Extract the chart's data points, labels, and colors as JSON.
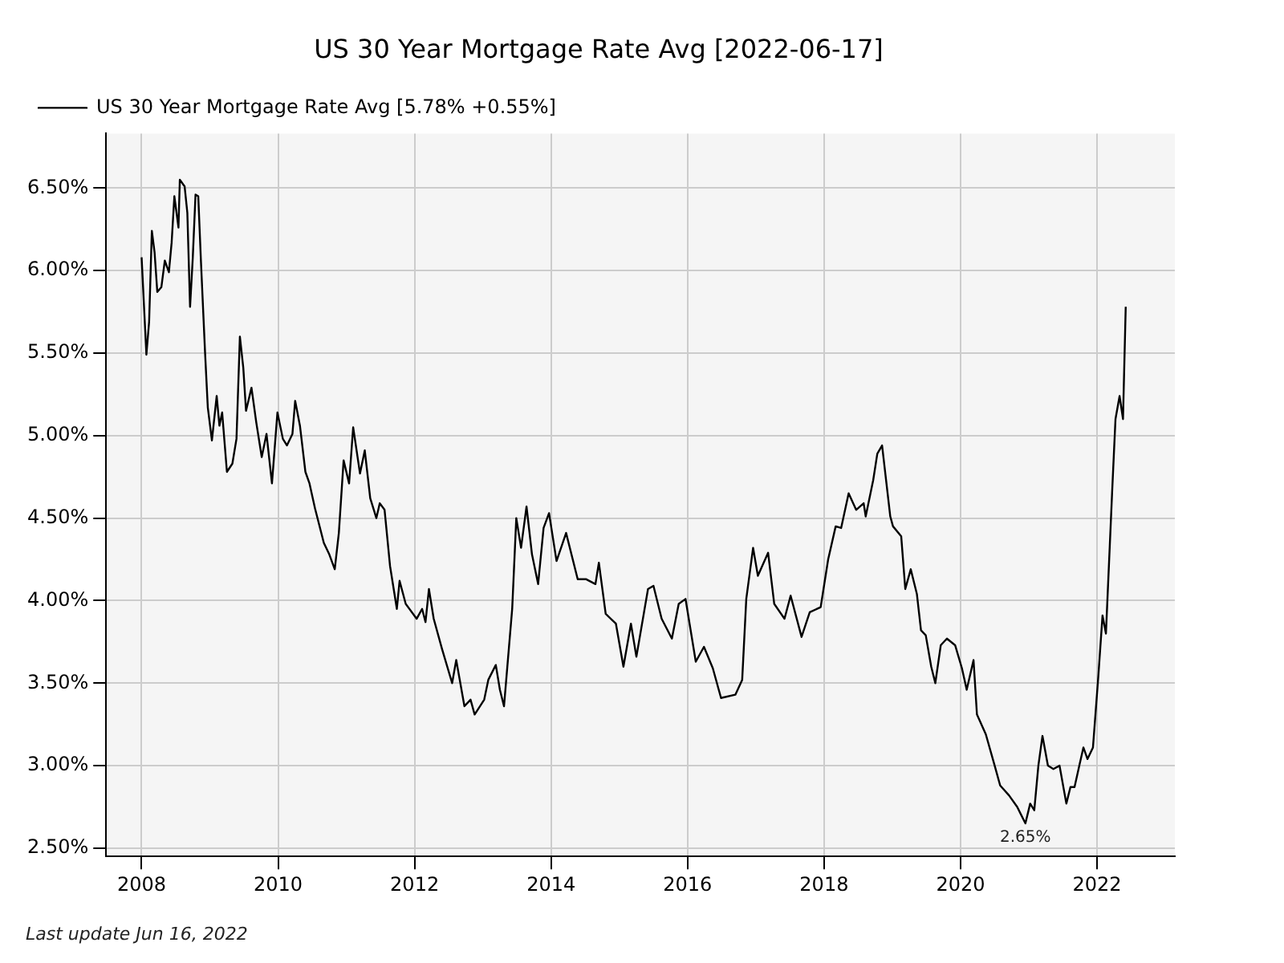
{
  "chart_data": {
    "type": "line",
    "title": "US 30 Year Mortgage Rate Avg [2022-06-17]",
    "x": [
      2008.0,
      2008.07,
      2008.11,
      2008.15,
      2008.19,
      2008.23,
      2008.29,
      2008.34,
      2008.4,
      2008.44,
      2008.48,
      2008.54,
      2008.56,
      2008.63,
      2008.67,
      2008.71,
      2008.75,
      2008.79,
      2008.83,
      2008.87,
      2008.93,
      2008.97,
      2009.03,
      2009.1,
      2009.14,
      2009.18,
      2009.25,
      2009.33,
      2009.39,
      2009.44,
      2009.49,
      2009.53,
      2009.61,
      2009.68,
      2009.76,
      2009.83,
      2009.91,
      2009.99,
      2010.07,
      2010.13,
      2010.21,
      2010.25,
      2010.32,
      2010.4,
      2010.46,
      2010.54,
      2010.67,
      2010.75,
      2010.83,
      2010.89,
      2010.96,
      2011.04,
      2011.1,
      2011.2,
      2011.27,
      2011.35,
      2011.44,
      2011.49,
      2011.56,
      2011.64,
      2011.74,
      2011.78,
      2011.87,
      2012.03,
      2012.11,
      2012.16,
      2012.21,
      2012.28,
      2012.4,
      2012.55,
      2012.61,
      2012.73,
      2012.82,
      2012.88,
      2013.02,
      2013.08,
      2013.19,
      2013.25,
      2013.31,
      2013.43,
      2013.49,
      2013.56,
      2013.64,
      2013.72,
      2013.81,
      2013.89,
      2013.97,
      2014.08,
      2014.22,
      2014.39,
      2014.51,
      2014.65,
      2014.7,
      2014.8,
      2014.95,
      2015.06,
      2015.17,
      2015.25,
      2015.42,
      2015.5,
      2015.62,
      2015.77,
      2015.87,
      2015.97,
      2016.12,
      2016.24,
      2016.37,
      2016.49,
      2016.7,
      2016.8,
      2016.86,
      2016.96,
      2017.03,
      2017.18,
      2017.27,
      2017.42,
      2017.51,
      2017.67,
      2017.79,
      2017.95,
      2018.06,
      2018.17,
      2018.25,
      2018.36,
      2018.47,
      2018.58,
      2018.61,
      2018.72,
      2018.78,
      2018.85,
      2018.97,
      2019.01,
      2019.13,
      2019.19,
      2019.27,
      2019.36,
      2019.42,
      2019.49,
      2019.57,
      2019.63,
      2019.71,
      2019.8,
      2019.92,
      2020.02,
      2020.09,
      2020.19,
      2020.24,
      2020.37,
      2020.5,
      2020.58,
      2020.71,
      2020.83,
      2020.95,
      2021.02,
      2021.08,
      2021.14,
      2021.2,
      2021.28,
      2021.36,
      2021.45,
      2021.55,
      2021.61,
      2021.67,
      2021.74,
      2021.8,
      2021.86,
      2021.94,
      2022.02,
      2022.08,
      2022.13,
      2022.22,
      2022.27,
      2022.33,
      2022.38,
      2022.42
    ],
    "series": [
      {
        "name": "US 30 Year Mortgage Rate Avg [5.78% +0.55%]",
        "color": "#000000",
        "values": [
          6.08,
          5.49,
          5.69,
          6.24,
          6.11,
          5.87,
          5.9,
          6.06,
          5.99,
          6.17,
          6.45,
          6.26,
          6.55,
          6.51,
          6.35,
          5.78,
          6.08,
          6.46,
          6.45,
          6.05,
          5.5,
          5.17,
          4.97,
          5.24,
          5.06,
          5.14,
          4.78,
          4.83,
          4.98,
          5.6,
          5.41,
          5.15,
          5.29,
          5.08,
          4.87,
          5.01,
          4.71,
          5.14,
          4.98,
          4.94,
          5.01,
          5.21,
          5.06,
          4.78,
          4.71,
          4.56,
          4.35,
          4.28,
          4.19,
          4.41,
          4.85,
          4.71,
          5.05,
          4.77,
          4.91,
          4.62,
          4.5,
          4.59,
          4.55,
          4.21,
          3.95,
          4.12,
          3.98,
          3.89,
          3.95,
          3.87,
          4.07,
          3.89,
          3.71,
          3.5,
          3.64,
          3.36,
          3.4,
          3.31,
          3.4,
          3.52,
          3.61,
          3.46,
          3.36,
          3.95,
          4.5,
          4.32,
          4.57,
          4.28,
          4.1,
          4.44,
          4.53,
          4.24,
          4.41,
          4.13,
          4.13,
          4.1,
          4.23,
          3.92,
          3.86,
          3.6,
          3.86,
          3.66,
          4.07,
          4.09,
          3.89,
          3.77,
          3.98,
          4.01,
          3.63,
          3.72,
          3.59,
          3.41,
          3.43,
          3.52,
          4.01,
          4.32,
          4.15,
          4.29,
          3.98,
          3.89,
          4.03,
          3.78,
          3.93,
          3.96,
          4.25,
          4.45,
          4.44,
          4.65,
          4.55,
          4.59,
          4.51,
          4.73,
          4.89,
          4.94,
          4.51,
          4.45,
          4.39,
          4.07,
          4.19,
          4.04,
          3.82,
          3.79,
          3.6,
          3.5,
          3.73,
          3.77,
          3.73,
          3.59,
          3.46,
          3.64,
          3.31,
          3.19,
          3.0,
          2.88,
          2.82,
          2.75,
          2.65,
          2.77,
          2.73,
          3.0,
          3.18,
          3.0,
          2.98,
          3.0,
          2.77,
          2.87,
          2.87,
          3.0,
          3.11,
          3.04,
          3.11,
          3.55,
          3.91,
          3.8,
          4.65,
          5.1,
          5.24,
          5.1,
          5.78
        ]
      }
    ],
    "xlim": [
      2007.48,
      2023.14
    ],
    "xticks": [
      2008,
      2010,
      2012,
      2014,
      2016,
      2018,
      2020,
      2022
    ],
    "ylim": [
      2.45,
      6.83
    ],
    "yticks": [
      {
        "value": 2.5,
        "label": "2.50%"
      },
      {
        "value": 3,
        "label": "3.00%"
      },
      {
        "value": 3.5,
        "label": "3.50%"
      },
      {
        "value": 4,
        "label": "4.00%"
      },
      {
        "value": 4.5,
        "label": "4.50%"
      },
      {
        "value": 5,
        "label": "5.00%"
      },
      {
        "value": 5.5,
        "label": "5.50%"
      },
      {
        "value": 6,
        "label": "6.00%"
      },
      {
        "value": 6.5,
        "label": "6.50%"
      }
    ],
    "grid": true,
    "legend": "top left",
    "marker": "none",
    "line_style": "solid",
    "annotations": [
      {
        "text": "2.65%",
        "x": 2020.95,
        "y": 2.65
      },
      "Last update Jun 16, 2022"
    ]
  }
}
